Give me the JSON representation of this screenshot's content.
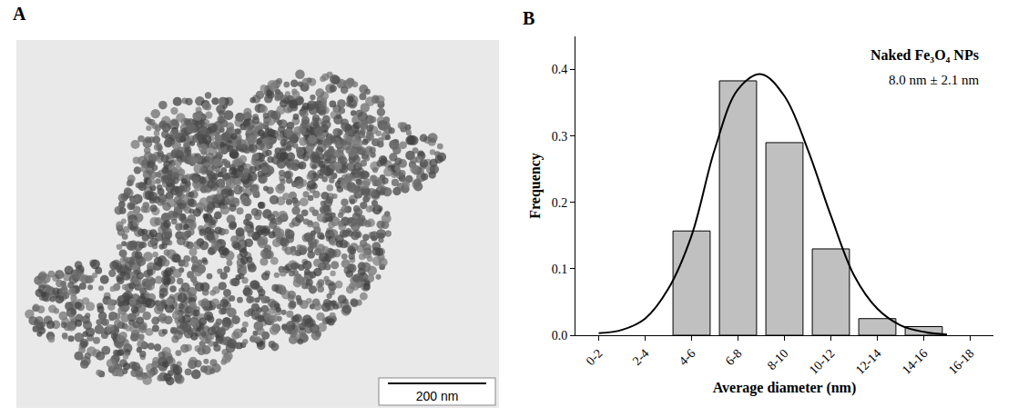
{
  "panel_a": {
    "label": "A",
    "scale_bar": "200 nm"
  },
  "chart_data": {
    "type": "bar",
    "panel_label": "B",
    "x_label": "Average diameter (nm)",
    "y_label": "Frequency",
    "annotations": [
      "Naked Fe₃O₄ NPs",
      "8.0 nm ± 2.1 nm"
    ],
    "xlim": [
      -0.5,
      8.5
    ],
    "xticks": [
      {
        "value": 0,
        "label": "0-2"
      },
      {
        "value": 1,
        "label": "2-4"
      },
      {
        "value": 2,
        "label": "4-6"
      },
      {
        "value": 3,
        "label": "6-8"
      },
      {
        "value": 4,
        "label": "8-10"
      },
      {
        "value": 5,
        "label": "10-12"
      },
      {
        "value": 6,
        "label": "12-14"
      },
      {
        "value": 7,
        "label": "14-16"
      },
      {
        "value": 8,
        "label": "16-18"
      }
    ],
    "ylim": [
      0,
      0.45
    ],
    "yticks": [
      {
        "value": 0,
        "label": "0.0"
      },
      0.1,
      0.2,
      0.3,
      0.4
    ],
    "grid": false,
    "series": [
      {
        "type": "bar",
        "color": "#c0c0c0",
        "x": [
          2,
          3,
          4,
          5,
          6,
          7
        ],
        "values": [
          0.157,
          0.383,
          0.29,
          0.13,
          0.025,
          0.013
        ]
      },
      {
        "type": "line",
        "color": "#000000",
        "x": [
          0,
          0.5,
          1,
          1.5,
          2,
          2.5,
          3,
          3.5,
          4,
          4.5,
          5,
          5.5,
          6,
          6.5,
          7,
          7.5
        ],
        "values": [
          0.003,
          0.008,
          0.025,
          0.07,
          0.15,
          0.28,
          0.37,
          0.393,
          0.36,
          0.28,
          0.18,
          0.09,
          0.04,
          0.015,
          0.005,
          0.001
        ]
      }
    ]
  }
}
